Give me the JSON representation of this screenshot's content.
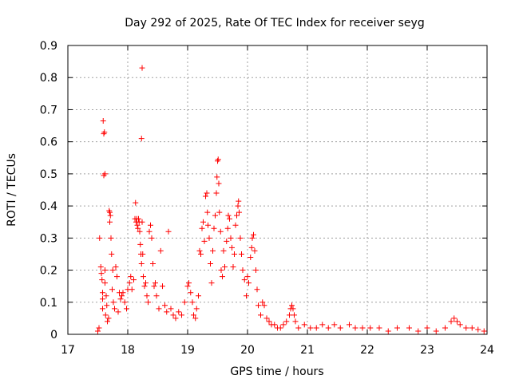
{
  "colors": {
    "series": "#ff0000",
    "grid": "#a0a0a0",
    "frame": "#000000"
  },
  "chart_data": {
    "type": "scatter",
    "title": "Day 292 of 2025, Rate Of TEC Index for receiver seyg",
    "xlabel": "GPS time / hours",
    "ylabel": "ROTI / TECUs",
    "xlim": [
      17,
      24
    ],
    "ylim": [
      0,
      0.9
    ],
    "xticks": [
      "17",
      "18",
      "19",
      "20",
      "21",
      "22",
      "23",
      "24"
    ],
    "yticks": [
      "0",
      "0.1",
      "0.2",
      "0.3",
      "0.4",
      "0.5",
      "0.6",
      "0.7",
      "0.8",
      "0.9"
    ],
    "grid": true,
    "marker": "plus",
    "series": [
      {
        "points": [
          [
            17.5,
            0.01
          ],
          [
            17.52,
            0.02
          ],
          [
            17.53,
            0.3
          ],
          [
            17.55,
            0.21
          ],
          [
            17.56,
            0.19
          ],
          [
            17.57,
            0.17
          ],
          [
            17.58,
            0.13
          ],
          [
            17.58,
            0.08
          ],
          [
            17.58,
            0.11
          ],
          [
            17.59,
            0.665
          ],
          [
            17.6,
            0.625
          ],
          [
            17.61,
            0.63
          ],
          [
            17.6,
            0.495
          ],
          [
            17.62,
            0.5
          ],
          [
            17.62,
            0.2
          ],
          [
            17.62,
            0.16
          ],
          [
            17.63,
            0.06
          ],
          [
            17.64,
            0.12
          ],
          [
            17.65,
            0.09
          ],
          [
            17.66,
            0.04
          ],
          [
            17.68,
            0.05
          ],
          [
            17.69,
            0.385
          ],
          [
            17.7,
            0.38
          ],
          [
            17.71,
            0.37
          ],
          [
            17.7,
            0.35
          ],
          [
            17.72,
            0.3
          ],
          [
            17.73,
            0.25
          ],
          [
            17.75,
            0.2
          ],
          [
            17.74,
            0.14
          ],
          [
            17.76,
            0.1
          ],
          [
            17.78,
            0.08
          ],
          [
            17.8,
            0.21
          ],
          [
            17.82,
            0.18
          ],
          [
            17.84,
            0.07
          ],
          [
            17.86,
            0.13
          ],
          [
            17.88,
            0.11
          ],
          [
            17.9,
            0.12
          ],
          [
            17.92,
            0.13
          ],
          [
            17.95,
            0.1
          ],
          [
            17.98,
            0.08
          ],
          [
            18.0,
            0.14
          ],
          [
            18.03,
            0.16
          ],
          [
            18.05,
            0.18
          ],
          [
            18.07,
            0.14
          ],
          [
            18.1,
            0.17
          ],
          [
            18.12,
            0.36
          ],
          [
            18.13,
            0.41
          ],
          [
            18.14,
            0.35
          ],
          [
            18.15,
            0.36
          ],
          [
            18.16,
            0.34
          ],
          [
            18.17,
            0.33
          ],
          [
            18.18,
            0.36
          ],
          [
            18.19,
            0.35
          ],
          [
            18.2,
            0.32
          ],
          [
            18.21,
            0.28
          ],
          [
            18.22,
            0.25
          ],
          [
            18.23,
            0.22
          ],
          [
            18.24,
            0.83
          ],
          [
            18.23,
            0.61
          ],
          [
            18.24,
            0.35
          ],
          [
            18.25,
            0.25
          ],
          [
            18.26,
            0.18
          ],
          [
            18.28,
            0.15
          ],
          [
            18.3,
            0.16
          ],
          [
            18.32,
            0.12
          ],
          [
            18.34,
            0.1
          ],
          [
            18.36,
            0.32
          ],
          [
            18.38,
            0.34
          ],
          [
            18.4,
            0.3
          ],
          [
            18.42,
            0.22
          ],
          [
            18.44,
            0.15
          ],
          [
            18.46,
            0.16
          ],
          [
            18.48,
            0.12
          ],
          [
            18.52,
            0.08
          ],
          [
            18.55,
            0.26
          ],
          [
            18.58,
            0.15
          ],
          [
            18.62,
            0.09
          ],
          [
            18.65,
            0.07
          ],
          [
            18.68,
            0.32
          ],
          [
            18.72,
            0.08
          ],
          [
            18.76,
            0.06
          ],
          [
            18.8,
            0.05
          ],
          [
            18.85,
            0.07
          ],
          [
            18.9,
            0.06
          ],
          [
            18.95,
            0.1
          ],
          [
            19.0,
            0.15
          ],
          [
            19.02,
            0.16
          ],
          [
            19.05,
            0.13
          ],
          [
            19.08,
            0.1
          ],
          [
            19.1,
            0.06
          ],
          [
            19.13,
            0.05
          ],
          [
            19.15,
            0.08
          ],
          [
            19.18,
            0.12
          ],
          [
            19.2,
            0.26
          ],
          [
            19.22,
            0.25
          ],
          [
            19.24,
            0.33
          ],
          [
            19.26,
            0.35
          ],
          [
            19.28,
            0.29
          ],
          [
            19.3,
            0.43
          ],
          [
            19.32,
            0.44
          ],
          [
            19.33,
            0.38
          ],
          [
            19.34,
            0.34
          ],
          [
            19.36,
            0.3
          ],
          [
            19.38,
            0.22
          ],
          [
            19.4,
            0.16
          ],
          [
            19.42,
            0.26
          ],
          [
            19.44,
            0.33
          ],
          [
            19.46,
            0.37
          ],
          [
            19.48,
            0.44
          ],
          [
            19.49,
            0.49
          ],
          [
            19.5,
            0.54
          ],
          [
            19.51,
            0.545
          ],
          [
            19.52,
            0.47
          ],
          [
            19.53,
            0.38
          ],
          [
            19.55,
            0.32
          ],
          [
            19.56,
            0.2
          ],
          [
            19.58,
            0.18
          ],
          [
            19.6,
            0.26
          ],
          [
            19.62,
            0.21
          ],
          [
            19.65,
            0.29
          ],
          [
            19.67,
            0.33
          ],
          [
            19.68,
            0.37
          ],
          [
            19.7,
            0.36
          ],
          [
            19.72,
            0.3
          ],
          [
            19.74,
            0.27
          ],
          [
            19.76,
            0.21
          ],
          [
            19.78,
            0.25
          ],
          [
            19.8,
            0.34
          ],
          [
            19.82,
            0.37
          ],
          [
            19.84,
            0.4
          ],
          [
            19.85,
            0.415
          ],
          [
            19.86,
            0.38
          ],
          [
            19.88,
            0.3
          ],
          [
            19.9,
            0.25
          ],
          [
            19.92,
            0.2
          ],
          [
            19.95,
            0.17
          ],
          [
            19.98,
            0.12
          ],
          [
            20.0,
            0.18
          ],
          [
            20.02,
            0.16
          ],
          [
            20.05,
            0.24
          ],
          [
            20.07,
            0.27
          ],
          [
            20.08,
            0.3
          ],
          [
            20.1,
            0.31
          ],
          [
            20.12,
            0.26
          ],
          [
            20.14,
            0.2
          ],
          [
            20.16,
            0.14
          ],
          [
            20.18,
            0.09
          ],
          [
            20.22,
            0.06
          ],
          [
            20.25,
            0.1
          ],
          [
            20.28,
            0.09
          ],
          [
            20.32,
            0.05
          ],
          [
            20.36,
            0.04
          ],
          [
            20.4,
            0.03
          ],
          [
            20.45,
            0.03
          ],
          [
            20.5,
            0.02
          ],
          [
            20.55,
            0.02
          ],
          [
            20.6,
            0.03
          ],
          [
            20.65,
            0.04
          ],
          [
            20.7,
            0.06
          ],
          [
            20.72,
            0.08
          ],
          [
            20.74,
            0.09
          ],
          [
            20.76,
            0.08
          ],
          [
            20.78,
            0.06
          ],
          [
            20.8,
            0.04
          ],
          [
            20.85,
            0.02
          ],
          [
            20.95,
            0.03
          ],
          [
            21.05,
            0.02
          ],
          [
            21.15,
            0.02
          ],
          [
            21.25,
            0.03
          ],
          [
            21.35,
            0.02
          ],
          [
            21.45,
            0.03
          ],
          [
            21.55,
            0.02
          ],
          [
            21.7,
            0.03
          ],
          [
            21.8,
            0.02
          ],
          [
            21.92,
            0.02
          ],
          [
            22.05,
            0.02
          ],
          [
            22.2,
            0.02
          ],
          [
            22.35,
            0.01
          ],
          [
            22.5,
            0.02
          ],
          [
            22.7,
            0.02
          ],
          [
            22.85,
            0.01
          ],
          [
            23.0,
            0.02
          ],
          [
            23.15,
            0.01
          ],
          [
            23.3,
            0.02
          ],
          [
            23.4,
            0.04
          ],
          [
            23.45,
            0.05
          ],
          [
            23.5,
            0.04
          ],
          [
            23.55,
            0.03
          ],
          [
            23.65,
            0.02
          ],
          [
            23.75,
            0.02
          ],
          [
            23.85,
            0.015
          ],
          [
            23.95,
            0.01
          ]
        ]
      }
    ]
  }
}
